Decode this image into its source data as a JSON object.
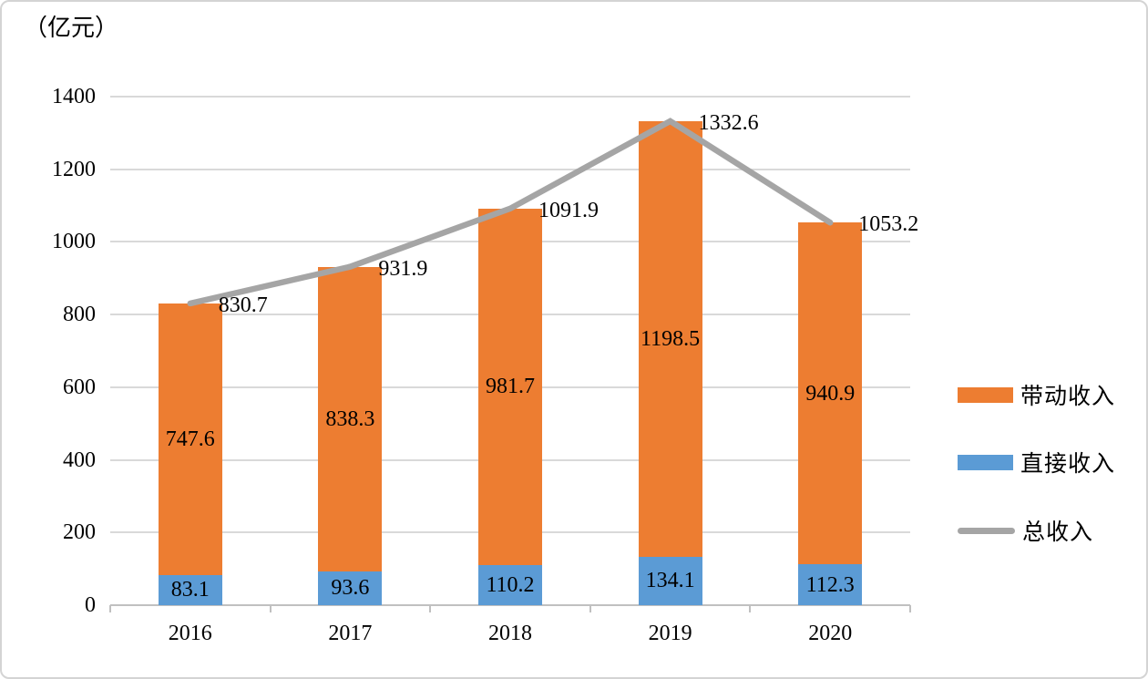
{
  "unit_label": "（亿元）",
  "chart_data": {
    "type": "bar",
    "subtype": "stacked-bars-with-line-overlay",
    "title": "",
    "unit": "（亿元）",
    "categories": [
      "2016",
      "2017",
      "2018",
      "2019",
      "2020"
    ],
    "series": [
      {
        "name": "直接收入",
        "type": "bar",
        "stack_order": 1,
        "color": "#5B9BD5",
        "values": [
          83.1,
          93.6,
          110.2,
          134.1,
          112.3
        ]
      },
      {
        "name": "带动收入",
        "type": "bar",
        "stack_order": 2,
        "color": "#ED7D31",
        "values": [
          747.6,
          838.3,
          981.7,
          1198.5,
          940.9
        ]
      },
      {
        "name": "总收入",
        "type": "line",
        "color": "#A5A5A5",
        "values": [
          830.7,
          931.9,
          1091.9,
          1332.6,
          1053.2
        ]
      }
    ],
    "xlabel": "",
    "ylabel": "（亿元）",
    "ylim": [
      0,
      1400
    ],
    "ytick_step": 200,
    "ytick_labels": [
      "0",
      "200",
      "400",
      "600",
      "800",
      "1000",
      "1200",
      "1400"
    ],
    "grid": true,
    "value_labels_visible": true,
    "legend_position": "right"
  },
  "legend": {
    "items": [
      {
        "label": "带动收入",
        "color": "#ED7D31",
        "shape": "rect"
      },
      {
        "label": "直接收入",
        "color": "#5B9BD5",
        "shape": "rect"
      },
      {
        "label": "总收入",
        "color": "#A5A5A5",
        "shape": "line"
      }
    ]
  },
  "colors": {
    "bar_orange": "#ED7D31",
    "bar_blue": "#5B9BD5",
    "line_gray": "#A5A5A5",
    "gridline": "#D9D9D9",
    "axis_line": "#C0C0C0",
    "text": "#000000",
    "frame_border": "#D4D4D4"
  }
}
